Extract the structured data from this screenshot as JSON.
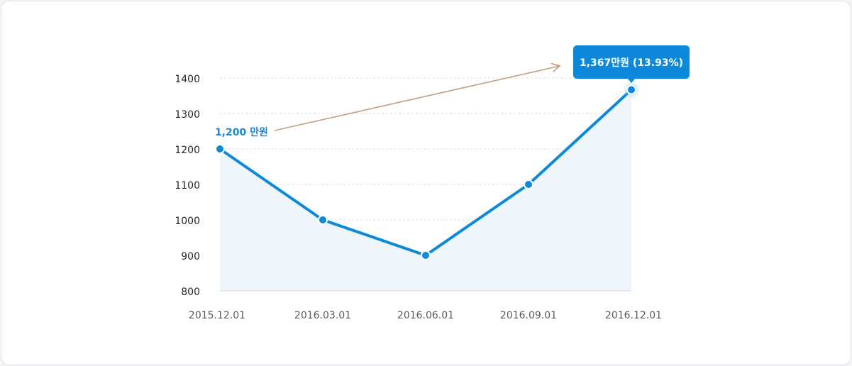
{
  "chart_data": {
    "type": "line",
    "x": [
      "2015.12.01",
      "2016.03.01",
      "2016.06.01",
      "2016.09.01",
      "2016.12.01"
    ],
    "values": [
      1200,
      1000,
      900,
      1100,
      1367
    ],
    "yticks": [
      800,
      900,
      1000,
      1100,
      1200,
      1300,
      1400
    ],
    "ylim": [
      800,
      1400
    ],
    "grid": true,
    "area_fill": true,
    "colors": {
      "line": "#0c8ad9",
      "area": "#eef6fb",
      "grid": "#d9dde2",
      "arrow": "#c19e80",
      "tooltip": "#0c8ad9"
    },
    "annotations": {
      "start_label": "1,200 만원",
      "end_tooltip": "1,367만원 (13.93%)"
    }
  }
}
